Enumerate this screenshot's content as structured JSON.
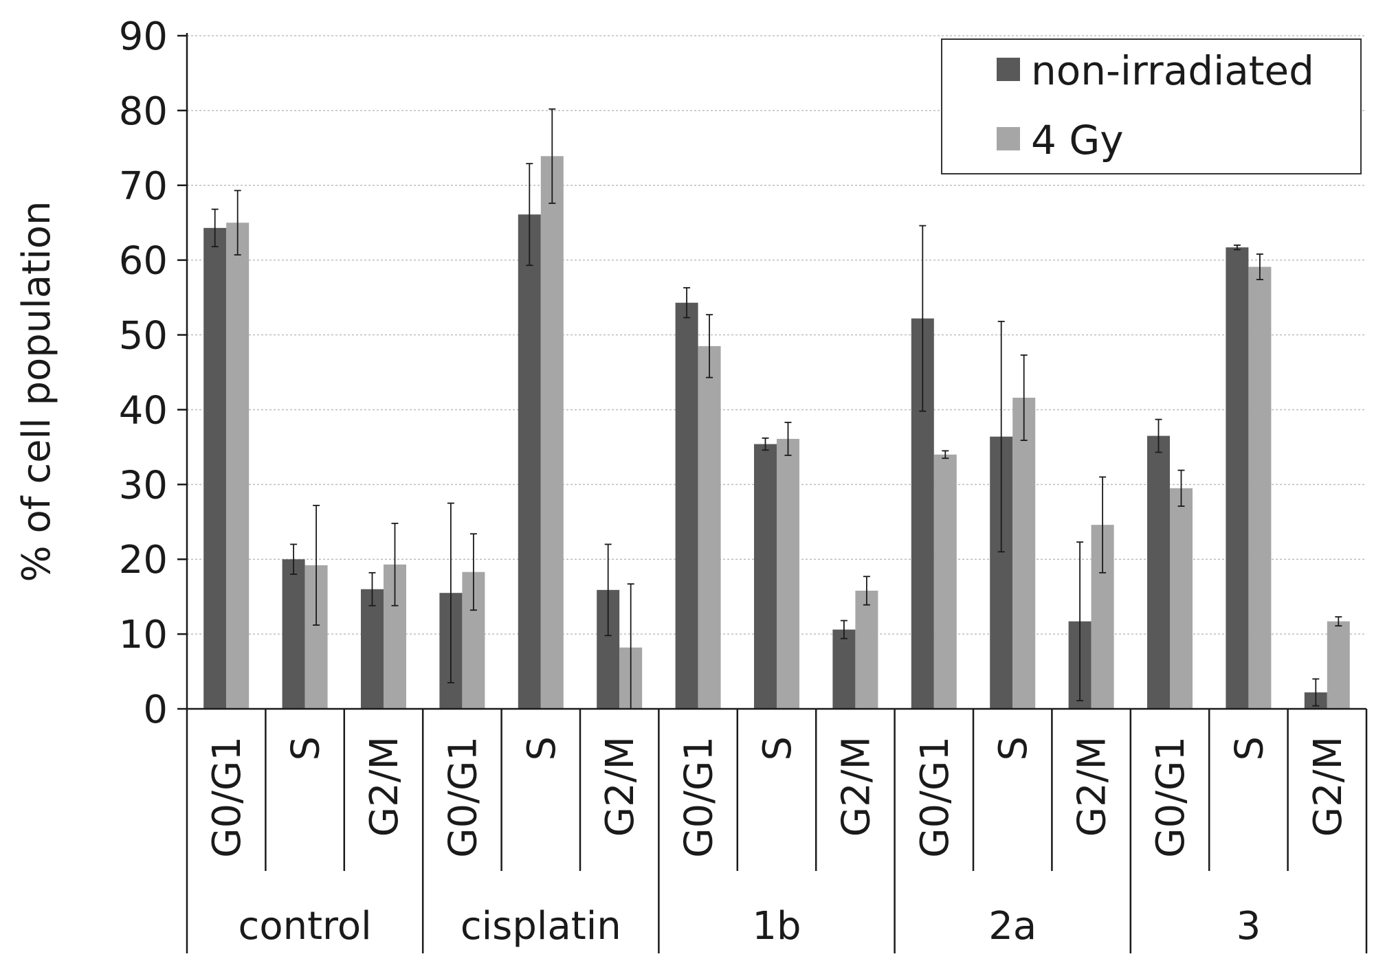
{
  "chart_data": {
    "type": "bar",
    "title": "",
    "xlabel": "",
    "ylabel": "% of cell population",
    "ylim": [
      0,
      90
    ],
    "yticks": [
      0,
      10,
      20,
      30,
      40,
      50,
      60,
      70,
      80,
      90
    ],
    "grid": true,
    "legend_position": "top-right",
    "groups": [
      {
        "label": "control",
        "phases": [
          "G0/G1",
          "S",
          "G2/M"
        ]
      },
      {
        "label": "cisplatin",
        "phases": [
          "G0/G1",
          "S",
          "G2/M"
        ]
      },
      {
        "label": "1b",
        "phases": [
          "G0/G1",
          "S",
          "G2/M"
        ]
      },
      {
        "label": "2a",
        "phases": [
          "G0/G1",
          "S",
          "G2/M"
        ]
      },
      {
        "label": "3",
        "phases": [
          "G0/G1",
          "S",
          "G2/M"
        ]
      }
    ],
    "series": [
      {
        "name": "non-irradiated",
        "color": "#595959",
        "values": [
          64.3,
          20.0,
          16.0,
          15.5,
          66.1,
          15.9,
          54.3,
          35.4,
          10.6,
          52.2,
          36.4,
          11.7,
          36.5,
          61.7,
          2.2
        ],
        "errors": [
          2.5,
          2.0,
          2.2,
          12.0,
          6.8,
          6.1,
          2.0,
          0.8,
          1.2,
          12.4,
          15.4,
          10.6,
          2.2,
          0.3,
          1.8
        ]
      },
      {
        "name": "4 Gy",
        "color": "#a6a6a6",
        "values": [
          65.0,
          19.2,
          19.3,
          18.3,
          73.9,
          8.2,
          48.5,
          36.1,
          15.8,
          34.0,
          41.6,
          24.6,
          29.5,
          59.1,
          11.7
        ],
        "errors": [
          4.3,
          8.0,
          5.5,
          5.1,
          6.3,
          8.5,
          4.2,
          2.2,
          1.9,
          0.5,
          5.7,
          6.4,
          2.4,
          1.7,
          0.6
        ]
      }
    ]
  }
}
